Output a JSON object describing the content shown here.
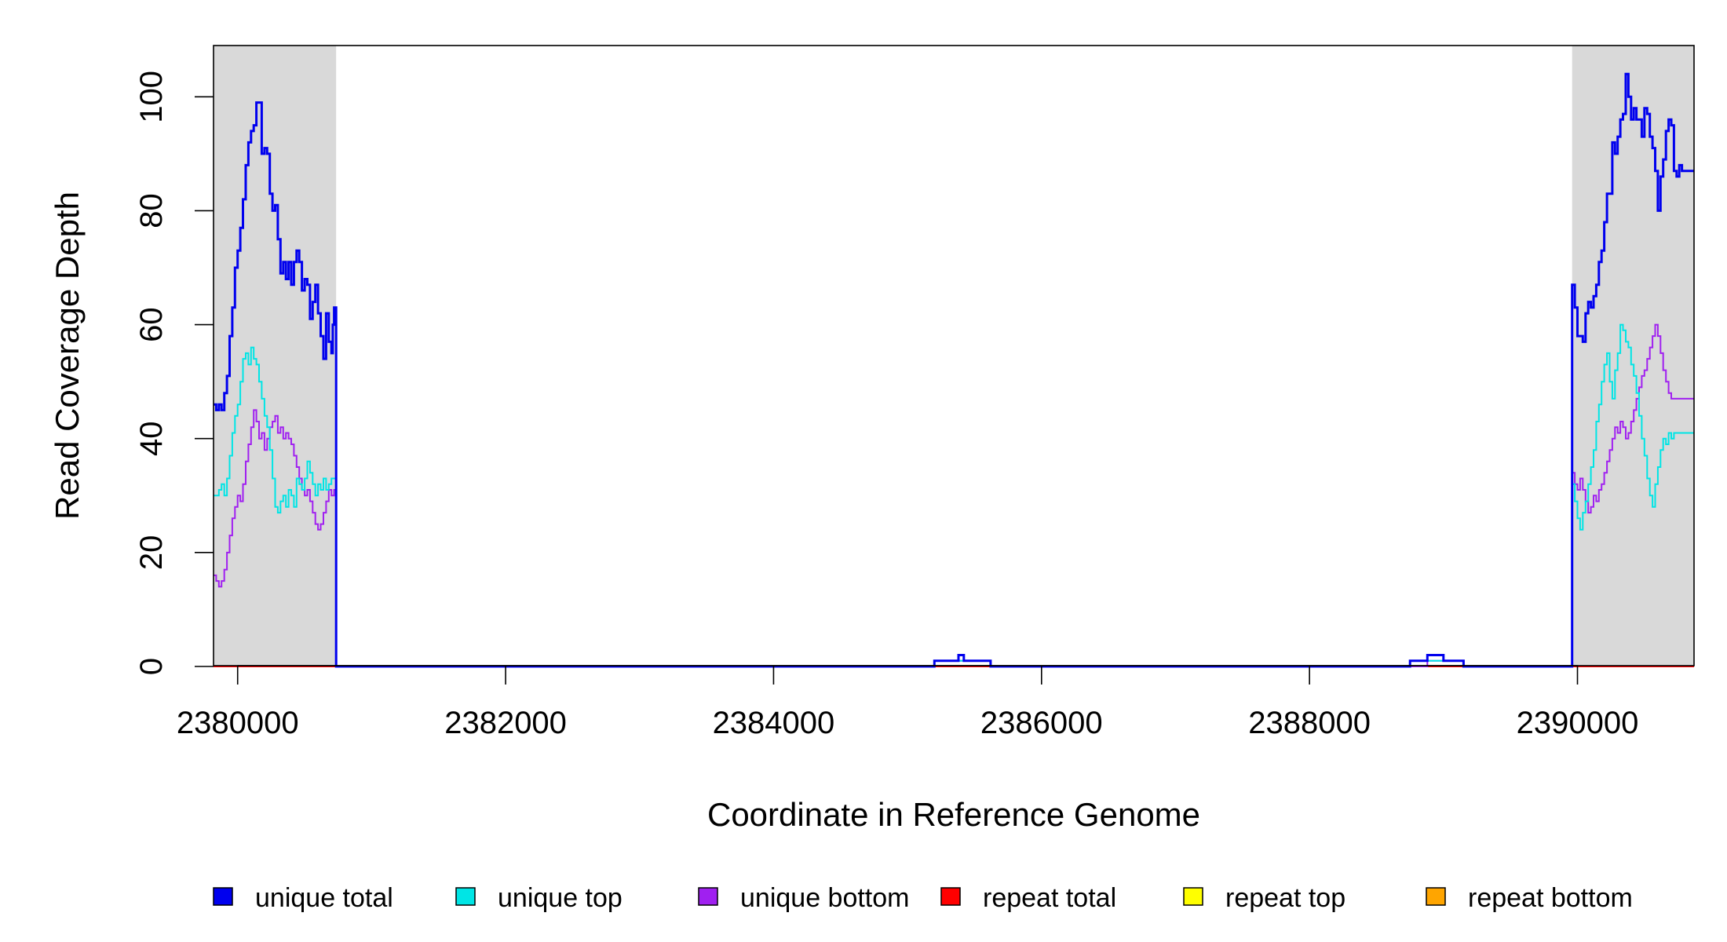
{
  "chart_data": {
    "type": "line",
    "title": "",
    "xlabel": "Coordinate in Reference Genome",
    "ylabel": "Read Coverage Depth",
    "xlim": [
      2379820,
      2390870
    ],
    "ylim": [
      0,
      109
    ],
    "x_ticks": [
      2380000,
      2382000,
      2384000,
      2386000,
      2388000,
      2390000
    ],
    "x_tick_labels": [
      "2380000",
      "2382000",
      "2384000",
      "2386000",
      "2388000",
      "2390000"
    ],
    "y_ticks": [
      0,
      20,
      40,
      60,
      80,
      100
    ],
    "y_tick_labels": [
      "0",
      "20",
      "40",
      "60",
      "80",
      "100"
    ],
    "grid": false,
    "shaded_regions": [
      {
        "x": [
          2379820,
          2380735
        ],
        "color": "#d9d9d9"
      },
      {
        "x": [
          2389960,
          2390870
        ],
        "color": "#d9d9d9"
      }
    ],
    "legend_position": "bottom",
    "series": [
      {
        "name": "unique total",
        "color": "#0000ee",
        "width": 3,
        "points": [
          [
            2379820,
            46
          ],
          [
            2379840,
            45
          ],
          [
            2379860,
            46
          ],
          [
            2379880,
            45
          ],
          [
            2379900,
            48
          ],
          [
            2379920,
            51
          ],
          [
            2379940,
            58
          ],
          [
            2379960,
            63
          ],
          [
            2379980,
            70
          ],
          [
            2380000,
            73
          ],
          [
            2380020,
            77
          ],
          [
            2380040,
            82
          ],
          [
            2380060,
            88
          ],
          [
            2380080,
            92
          ],
          [
            2380100,
            94
          ],
          [
            2380120,
            95
          ],
          [
            2380140,
            99
          ],
          [
            2380160,
            99
          ],
          [
            2380180,
            90
          ],
          [
            2380200,
            91
          ],
          [
            2380220,
            90
          ],
          [
            2380240,
            83
          ],
          [
            2380260,
            80
          ],
          [
            2380280,
            81
          ],
          [
            2380300,
            75
          ],
          [
            2380320,
            69
          ],
          [
            2380340,
            71
          ],
          [
            2380360,
            68
          ],
          [
            2380380,
            71
          ],
          [
            2380400,
            67
          ],
          [
            2380420,
            71
          ],
          [
            2380440,
            73
          ],
          [
            2380460,
            71
          ],
          [
            2380480,
            66
          ],
          [
            2380500,
            68
          ],
          [
            2380520,
            67
          ],
          [
            2380540,
            61
          ],
          [
            2380560,
            64
          ],
          [
            2380580,
            67
          ],
          [
            2380600,
            62
          ],
          [
            2380620,
            58
          ],
          [
            2380640,
            54
          ],
          [
            2380660,
            62
          ],
          [
            2380680,
            57
          ],
          [
            2380700,
            55
          ],
          [
            2380710,
            60
          ],
          [
            2380720,
            63
          ],
          [
            2380735,
            0
          ],
          [
            2385200,
            1
          ],
          [
            2385380,
            2
          ],
          [
            2385420,
            1
          ],
          [
            2385620,
            0
          ],
          [
            2388750,
            1
          ],
          [
            2388880,
            2
          ],
          [
            2389000,
            1
          ],
          [
            2389150,
            0
          ],
          [
            2389960,
            67
          ],
          [
            2389980,
            63
          ],
          [
            2390000,
            58
          ],
          [
            2390040,
            57
          ],
          [
            2390060,
            62
          ],
          [
            2390080,
            64
          ],
          [
            2390100,
            63
          ],
          [
            2390120,
            65
          ],
          [
            2390140,
            67
          ],
          [
            2390160,
            71
          ],
          [
            2390180,
            73
          ],
          [
            2390200,
            78
          ],
          [
            2390220,
            83
          ],
          [
            2390260,
            92
          ],
          [
            2390280,
            90
          ],
          [
            2390300,
            93
          ],
          [
            2390320,
            96
          ],
          [
            2390340,
            97
          ],
          [
            2390360,
            104
          ],
          [
            2390380,
            100
          ],
          [
            2390400,
            96
          ],
          [
            2390420,
            98
          ],
          [
            2390440,
            96
          ],
          [
            2390460,
            96
          ],
          [
            2390480,
            93
          ],
          [
            2390500,
            98
          ],
          [
            2390520,
            97
          ],
          [
            2390540,
            93
          ],
          [
            2390560,
            91
          ],
          [
            2390580,
            87
          ],
          [
            2390600,
            80
          ],
          [
            2390620,
            86
          ],
          [
            2390640,
            89
          ],
          [
            2390660,
            94
          ],
          [
            2390680,
            96
          ],
          [
            2390700,
            95
          ],
          [
            2390720,
            87
          ],
          [
            2390740,
            86
          ],
          [
            2390760,
            88
          ],
          [
            2390780,
            87
          ]
        ]
      },
      {
        "name": "unique top",
        "color": "#00e5e5",
        "width": 2,
        "points": [
          [
            2379820,
            30
          ],
          [
            2379860,
            31
          ],
          [
            2379880,
            32
          ],
          [
            2379900,
            30
          ],
          [
            2379920,
            33
          ],
          [
            2379940,
            37
          ],
          [
            2379960,
            41
          ],
          [
            2379980,
            44
          ],
          [
            2380000,
            46
          ],
          [
            2380020,
            50
          ],
          [
            2380040,
            54
          ],
          [
            2380060,
            55
          ],
          [
            2380080,
            53
          ],
          [
            2380100,
            56
          ],
          [
            2380120,
            54
          ],
          [
            2380140,
            53
          ],
          [
            2380160,
            50
          ],
          [
            2380180,
            47
          ],
          [
            2380200,
            44
          ],
          [
            2380220,
            42
          ],
          [
            2380240,
            38
          ],
          [
            2380260,
            33
          ],
          [
            2380280,
            28
          ],
          [
            2380300,
            27
          ],
          [
            2380320,
            29
          ],
          [
            2380340,
            30
          ],
          [
            2380360,
            28
          ],
          [
            2380380,
            31
          ],
          [
            2380400,
            30
          ],
          [
            2380420,
            28
          ],
          [
            2380440,
            33
          ],
          [
            2380460,
            32
          ],
          [
            2380480,
            31
          ],
          [
            2380500,
            33
          ],
          [
            2380520,
            36
          ],
          [
            2380540,
            34
          ],
          [
            2380560,
            32
          ],
          [
            2380580,
            30
          ],
          [
            2380600,
            32
          ],
          [
            2380620,
            31
          ],
          [
            2380640,
            33
          ],
          [
            2380660,
            31
          ],
          [
            2380680,
            32
          ],
          [
            2380700,
            33
          ],
          [
            2380735,
            0
          ],
          [
            2385200,
            1
          ],
          [
            2385620,
            0
          ],
          [
            2388750,
            1
          ],
          [
            2389150,
            0
          ],
          [
            2389960,
            32
          ],
          [
            2389980,
            29
          ],
          [
            2390000,
            26
          ],
          [
            2390020,
            24
          ],
          [
            2390040,
            27
          ],
          [
            2390060,
            29
          ],
          [
            2390080,
            32
          ],
          [
            2390100,
            35
          ],
          [
            2390120,
            38
          ],
          [
            2390140,
            43
          ],
          [
            2390160,
            46
          ],
          [
            2390180,
            50
          ],
          [
            2390200,
            53
          ],
          [
            2390220,
            55
          ],
          [
            2390240,
            50
          ],
          [
            2390260,
            47
          ],
          [
            2390280,
            52
          ],
          [
            2390300,
            55
          ],
          [
            2390320,
            60
          ],
          [
            2390340,
            59
          ],
          [
            2390360,
            57
          ],
          [
            2390380,
            56
          ],
          [
            2390400,
            53
          ],
          [
            2390420,
            51
          ],
          [
            2390440,
            48
          ],
          [
            2390460,
            44
          ],
          [
            2390480,
            40
          ],
          [
            2390500,
            37
          ],
          [
            2390520,
            33
          ],
          [
            2390540,
            30
          ],
          [
            2390560,
            28
          ],
          [
            2390580,
            32
          ],
          [
            2390600,
            35
          ],
          [
            2390620,
            38
          ],
          [
            2390640,
            40
          ],
          [
            2390660,
            39
          ],
          [
            2390680,
            41
          ],
          [
            2390700,
            40
          ],
          [
            2390720,
            41
          ]
        ]
      },
      {
        "name": "unique bottom",
        "color": "#a020f0",
        "width": 2,
        "points": [
          [
            2379820,
            16
          ],
          [
            2379840,
            15
          ],
          [
            2379860,
            14
          ],
          [
            2379880,
            15
          ],
          [
            2379900,
            17
          ],
          [
            2379920,
            20
          ],
          [
            2379940,
            23
          ],
          [
            2379960,
            26
          ],
          [
            2379980,
            28
          ],
          [
            2380000,
            30
          ],
          [
            2380020,
            29
          ],
          [
            2380040,
            32
          ],
          [
            2380060,
            36
          ],
          [
            2380080,
            39
          ],
          [
            2380100,
            42
          ],
          [
            2380120,
            45
          ],
          [
            2380140,
            43
          ],
          [
            2380160,
            40
          ],
          [
            2380180,
            41
          ],
          [
            2380200,
            38
          ],
          [
            2380220,
            40
          ],
          [
            2380240,
            42
          ],
          [
            2380260,
            43
          ],
          [
            2380280,
            44
          ],
          [
            2380300,
            41
          ],
          [
            2380320,
            42
          ],
          [
            2380340,
            40
          ],
          [
            2380360,
            41
          ],
          [
            2380380,
            40
          ],
          [
            2380400,
            39
          ],
          [
            2380420,
            37
          ],
          [
            2380440,
            35
          ],
          [
            2380460,
            33
          ],
          [
            2380480,
            31
          ],
          [
            2380500,
            30
          ],
          [
            2380520,
            31
          ],
          [
            2380540,
            29
          ],
          [
            2380560,
            27
          ],
          [
            2380580,
            25
          ],
          [
            2380600,
            24
          ],
          [
            2380620,
            25
          ],
          [
            2380640,
            27
          ],
          [
            2380660,
            29
          ],
          [
            2380680,
            31
          ],
          [
            2380700,
            30
          ],
          [
            2380720,
            31
          ],
          [
            2380735,
            0
          ],
          [
            2385200,
            1
          ],
          [
            2385620,
            0
          ],
          [
            2388880,
            1
          ],
          [
            2389150,
            0
          ],
          [
            2389960,
            34
          ],
          [
            2389980,
            32
          ],
          [
            2390000,
            31
          ],
          [
            2390020,
            33
          ],
          [
            2390040,
            31
          ],
          [
            2390060,
            29
          ],
          [
            2390080,
            27
          ],
          [
            2390100,
            28
          ],
          [
            2390120,
            30
          ],
          [
            2390140,
            29
          ],
          [
            2390160,
            31
          ],
          [
            2390180,
            32
          ],
          [
            2390200,
            34
          ],
          [
            2390220,
            36
          ],
          [
            2390240,
            38
          ],
          [
            2390260,
            40
          ],
          [
            2390280,
            42
          ],
          [
            2390300,
            41
          ],
          [
            2390320,
            43
          ],
          [
            2390340,
            42
          ],
          [
            2390360,
            40
          ],
          [
            2390380,
            41
          ],
          [
            2390400,
            43
          ],
          [
            2390420,
            45
          ],
          [
            2390440,
            47
          ],
          [
            2390460,
            49
          ],
          [
            2390480,
            51
          ],
          [
            2390500,
            52
          ],
          [
            2390520,
            54
          ],
          [
            2390540,
            56
          ],
          [
            2390560,
            58
          ],
          [
            2390580,
            60
          ],
          [
            2390600,
            58
          ],
          [
            2390620,
            55
          ],
          [
            2390640,
            52
          ],
          [
            2390660,
            50
          ],
          [
            2390680,
            48
          ],
          [
            2390700,
            47
          ]
        ]
      },
      {
        "name": "repeat total",
        "color": "#ff0000",
        "width": 2,
        "points": [
          [
            2379820,
            0
          ],
          [
            2390870,
            0
          ]
        ]
      },
      {
        "name": "repeat top",
        "color": "#ffff00",
        "width": 2,
        "points": [
          [
            2379820,
            0
          ],
          [
            2390870,
            0
          ]
        ]
      },
      {
        "name": "repeat bottom",
        "color": "#ffa500",
        "width": 2,
        "points": [
          [
            2379820,
            0
          ],
          [
            2390870,
            0
          ]
        ]
      }
    ]
  }
}
